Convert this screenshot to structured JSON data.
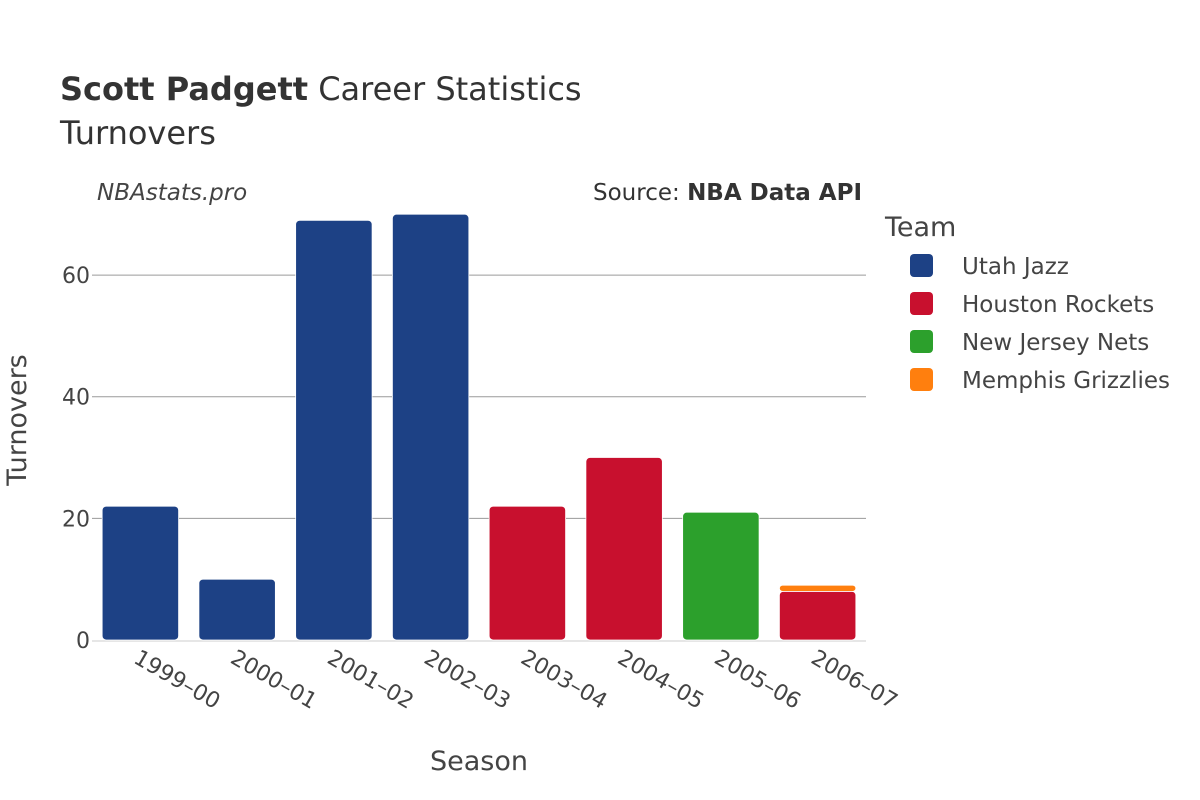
{
  "header": {
    "player_name": "Scott Padgett",
    "title_rest": " Career Statistics",
    "subtitle": "Turnovers"
  },
  "watermark": "NBAstats.pro",
  "source": {
    "prefix": "Source: ",
    "name": "NBA Data API"
  },
  "legend": {
    "title": "Team"
  },
  "colors": {
    "Utah Jazz": "#1d4185",
    "Houston Rockets": "#c8102e",
    "New Jersey Nets": "#2ca02c",
    "Memphis Grizzlies": "#ff7f0e"
  },
  "chart_data": {
    "type": "bar",
    "stacked": true,
    "categories": [
      "1999–00",
      "2000–01",
      "2001–02",
      "2002–03",
      "2003–04",
      "2004–05",
      "2005–06",
      "2006–07"
    ],
    "series": [
      {
        "name": "Utah Jazz",
        "values": [
          22,
          10,
          69,
          70,
          0,
          0,
          0,
          0
        ]
      },
      {
        "name": "Houston Rockets",
        "values": [
          0,
          0,
          0,
          0,
          22,
          30,
          0,
          8
        ]
      },
      {
        "name": "New Jersey Nets",
        "values": [
          0,
          0,
          0,
          0,
          0,
          0,
          21,
          0
        ]
      },
      {
        "name": "Memphis Grizzlies",
        "values": [
          0,
          0,
          0,
          0,
          0,
          0,
          0,
          1
        ]
      }
    ],
    "xlabel": "Season",
    "ylabel": "Turnovers",
    "ylim": [
      0,
      73
    ],
    "yticks": [
      0,
      20,
      40,
      60
    ],
    "grid": true,
    "legend_position": "right"
  }
}
